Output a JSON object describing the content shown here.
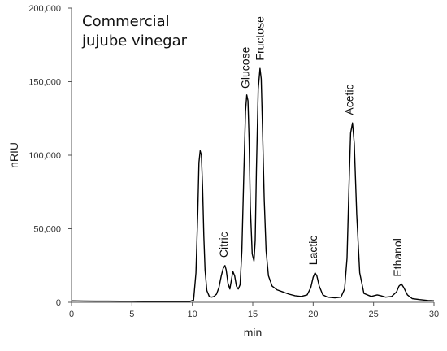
{
  "chart_data": {
    "type": "line",
    "title_lines": [
      "Commercial",
      "jujube vinegar"
    ],
    "xlabel": "min",
    "ylabel": "nRIU",
    "xlim": [
      0,
      30
    ],
    "ylim": [
      0,
      200000
    ],
    "x_ticks": [
      0,
      5,
      10,
      15,
      20,
      25,
      30
    ],
    "x_tick_labels": [
      "0",
      "5",
      "10",
      "15",
      "20",
      "25",
      "30"
    ],
    "y_ticks": [
      0,
      50000,
      100000,
      150000,
      200000
    ],
    "y_tick_labels": [
      "0",
      "50,000",
      "100,000",
      "150,000",
      "200,000"
    ],
    "grid": false,
    "legend": "none",
    "line_color": "#000000",
    "series": [
      {
        "x": [
          0,
          1,
          2,
          3,
          4,
          5,
          6,
          7,
          8,
          9,
          9.8,
          10.1,
          10.3,
          10.45,
          10.55,
          10.65,
          10.75,
          10.85,
          10.95,
          11.05,
          11.2,
          11.4,
          11.6,
          11.8,
          12.0,
          12.2,
          12.4,
          12.55,
          12.7,
          12.8,
          12.95,
          13.1,
          13.25,
          13.35,
          13.5,
          13.65,
          13.8,
          13.95,
          14.1,
          14.25,
          14.4,
          14.5,
          14.6,
          14.7,
          14.8,
          14.95,
          15.1,
          15.2,
          15.3,
          15.45,
          15.6,
          15.7,
          15.8,
          15.95,
          16.1,
          16.3,
          16.6,
          17.0,
          17.5,
          18.0,
          18.5,
          19.0,
          19.5,
          19.8,
          20.0,
          20.15,
          20.3,
          20.5,
          20.8,
          21.2,
          21.8,
          22.3,
          22.6,
          22.8,
          22.95,
          23.1,
          23.25,
          23.4,
          23.6,
          23.85,
          24.2,
          24.8,
          25.3,
          25.6,
          26.0,
          26.5,
          26.9,
          27.1,
          27.3,
          27.5,
          27.8,
          28.2,
          28.8,
          29.5,
          30.0
        ],
        "y": [
          1000,
          900,
          800,
          800,
          700,
          700,
          600,
          600,
          600,
          600,
          600,
          1500,
          20000,
          62000,
          95000,
          103000,
          100000,
          78000,
          45000,
          22000,
          8000,
          4000,
          3500,
          4000,
          5500,
          10000,
          18000,
          23000,
          25000,
          22000,
          13000,
          9000,
          16000,
          21000,
          18000,
          11000,
          9000,
          12000,
          35000,
          85000,
          130000,
          141000,
          137000,
          110000,
          65000,
          33000,
          28000,
          42000,
          90000,
          145000,
          159000,
          152000,
          120000,
          70000,
          35000,
          18000,
          11000,
          8500,
          7000,
          5500,
          4500,
          4000,
          5000,
          10000,
          17000,
          20000,
          18000,
          11000,
          5000,
          3500,
          3000,
          3500,
          9000,
          30000,
          75000,
          115000,
          122000,
          108000,
          60000,
          20000,
          6000,
          4000,
          5000,
          4500,
          3500,
          4000,
          7000,
          11000,
          12500,
          10000,
          5000,
          2500,
          1800,
          1200,
          1000
        ]
      }
    ],
    "annotations": [
      {
        "text": "Citric",
        "x": 12.9,
        "y": 27000
      },
      {
        "text": "Glucose",
        "x": 14.7,
        "y": 142000
      },
      {
        "text": "Fructose",
        "x": 15.9,
        "y": 161000
      },
      {
        "text": "Lactic",
        "x": 20.3,
        "y": 22000
      },
      {
        "text": "Acetic",
        "x": 23.3,
        "y": 124000
      },
      {
        "text": "Ethanol",
        "x": 27.3,
        "y": 14000
      }
    ]
  }
}
